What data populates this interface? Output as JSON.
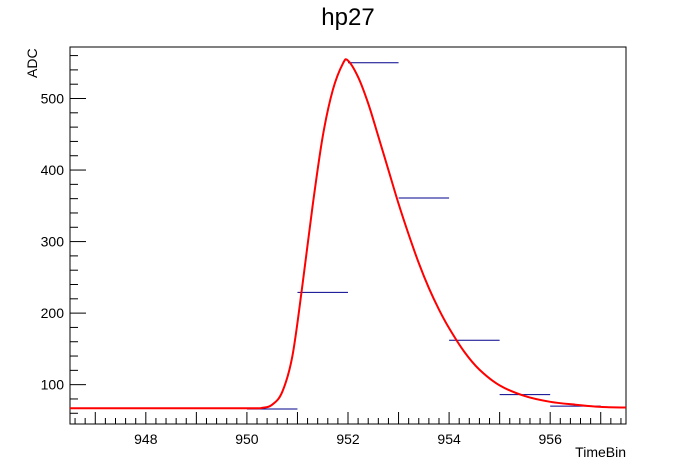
{
  "chart_data": {
    "type": "line",
    "title": "hp27",
    "xlabel": "TimeBin",
    "ylabel": "ADC",
    "xlim": [
      946.5,
      957.5
    ],
    "ylim": [
      45,
      572
    ],
    "x_ticks": [
      948,
      950,
      952,
      954,
      956
    ],
    "y_ticks": [
      100,
      200,
      300,
      400,
      500
    ],
    "grid": false,
    "series": [
      {
        "style": "histogram-bars",
        "color": "#00008b",
        "bin_width": 1,
        "x": [
          950,
          951,
          952,
          953,
          954,
          955,
          956
        ],
        "values": [
          66,
          229,
          550,
          361,
          162,
          86,
          70
        ]
      },
      {
        "style": "fit-curve",
        "color": "#ff0000",
        "baseline": 67,
        "x": [
          946.5,
          948,
          950,
          950.3,
          950.5,
          950.7,
          950.9,
          951.1,
          951.3,
          951.5,
          951.7,
          951.9,
          952,
          952.2,
          952.4,
          952.6,
          952.8,
          953,
          953.2,
          953.4,
          953.6,
          953.8,
          954,
          954.3,
          954.6,
          955,
          955.5,
          956,
          956.5,
          957,
          957.5
        ],
        "values": [
          67,
          67,
          67,
          67.5,
          72,
          90,
          140,
          240,
          350,
          447,
          512,
          549,
          553,
          530,
          493,
          447,
          400,
          353,
          310,
          270,
          235,
          205,
          179,
          146,
          121,
          99,
          84,
          76,
          72,
          69,
          68
        ]
      }
    ]
  }
}
